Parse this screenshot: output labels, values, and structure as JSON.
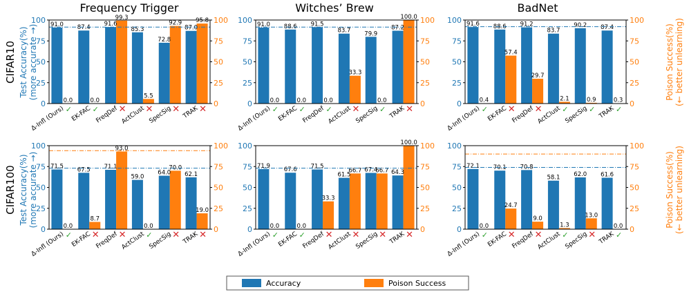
{
  "chart_data": {
    "type": "bar",
    "colors": {
      "accuracy": "#1f77b4",
      "poison": "#ff7f0e",
      "check": "#2ca02c",
      "cross": "#d62728"
    },
    "legend": {
      "accuracy_label": "Accuracy",
      "poison_label": "Poison Success",
      "position": "bottom-center"
    },
    "column_titles": [
      "Frequency Trigger",
      "Witches’ Brew",
      "BadNet"
    ],
    "row_labels": [
      "CIFAR10",
      "CIFAR100"
    ],
    "left_axis_label": [
      "Test Accuracy(%)",
      "(more accurate →)"
    ],
    "right_axis_label": [
      "Poison Success(%)",
      "(← better unlearning)"
    ],
    "ylim": [
      0,
      100
    ],
    "yticks": [
      "0",
      "25",
      "50",
      "75",
      "100"
    ],
    "categories": [
      "Δ-Infl (Ours)",
      "EK-FAC",
      "FreqDef",
      "ActClust",
      "SpecSig",
      "TRAK"
    ],
    "panels": [
      {
        "row": 0,
        "col": 0,
        "accuracy": [
          91.0,
          87.4,
          91.6,
          85.3,
          72.8,
          87.0
        ],
        "accuracy_labels": [
          "91.0",
          "87.4",
          "91.6",
          "85.3",
          "72.8",
          "87.0"
        ],
        "poison": [
          0.0,
          0.0,
          99.3,
          5.5,
          92.9,
          95.8
        ],
        "poison_labels": [
          "0.0",
          "0.0",
          "99.3",
          "5.5",
          "92.9",
          "95.8"
        ],
        "marks": [
          "check",
          "check",
          "cross",
          "cross",
          "cross",
          "cross"
        ],
        "ref_accuracy": 91.5,
        "ref_poison": 100
      },
      {
        "row": 0,
        "col": 1,
        "accuracy": [
          91.0,
          88.6,
          91.5,
          83.7,
          79.9,
          87.2
        ],
        "accuracy_labels": [
          "91.0",
          "88.6",
          "91.5",
          "83.7",
          "79.9",
          "87.2"
        ],
        "poison": [
          0.0,
          0.0,
          0.0,
          33.3,
          0.0,
          100.0
        ],
        "poison_labels": [
          "0.0",
          "0.0",
          "0.0",
          "33.3",
          "0.0",
          "100.0"
        ],
        "marks": [
          "check",
          "check",
          "check",
          "cross",
          "check",
          "cross"
        ],
        "ref_accuracy": 91.5,
        "ref_poison": 100
      },
      {
        "row": 0,
        "col": 2,
        "accuracy": [
          91.6,
          88.6,
          91.2,
          83.7,
          90.2,
          87.4
        ],
        "accuracy_labels": [
          "91.6",
          "88.6",
          "91.2",
          "83.7",
          "90.2",
          "87.4"
        ],
        "poison": [
          0.4,
          57.4,
          29.7,
          2.1,
          0.9,
          0.3
        ],
        "poison_labels": [
          "0.4",
          "57.4",
          "29.7",
          "2.1",
          "0.9",
          "0.3"
        ],
        "marks": [
          "check",
          "cross",
          "cross",
          "check",
          "check",
          "check"
        ],
        "ref_accuracy": 92,
        "ref_poison": 100
      },
      {
        "row": 1,
        "col": 0,
        "accuracy": [
          71.5,
          67.5,
          71.1,
          59.0,
          64.0,
          62.1
        ],
        "accuracy_labels": [
          "71.5",
          "67.5",
          "71.1",
          "59.0",
          "64.0",
          "62.1"
        ],
        "poison": [
          0.0,
          8.7,
          93.0,
          0.0,
          70.0,
          19.0
        ],
        "poison_labels": [
          "0.0",
          "8.7",
          "93.0",
          "0.0",
          "70.0",
          "19.0"
        ],
        "marks": [
          "check",
          "cross",
          "cross",
          "check",
          "cross",
          "cross"
        ],
        "ref_accuracy": 73,
        "ref_poison": 94
      },
      {
        "row": 1,
        "col": 1,
        "accuracy": [
          71.9,
          67.6,
          71.5,
          61.5,
          67.4,
          64.3
        ],
        "accuracy_labels": [
          "71.9",
          "67.6",
          "71.5",
          "61.5",
          "67.4",
          "64.3"
        ],
        "poison": [
          0.0,
          0.0,
          33.3,
          66.7,
          66.7,
          100.0
        ],
        "poison_labels": [
          "0.0",
          "0.0",
          "33.3",
          "66.7",
          "66.7",
          "100.0"
        ],
        "marks": [
          "check",
          "check",
          "cross",
          "cross",
          "cross",
          "cross"
        ],
        "ref_accuracy": 73,
        "ref_poison": 100
      },
      {
        "row": 1,
        "col": 2,
        "accuracy": [
          72.1,
          70.1,
          70.8,
          58.1,
          62.0,
          61.6
        ],
        "accuracy_labels": [
          "72.1",
          "70.1",
          "70.8",
          "58.1",
          "62.0",
          "61.6"
        ],
        "poison": [
          0.0,
          24.7,
          9.0,
          1.3,
          13.0,
          0.0
        ],
        "poison_labels": [
          "0.0",
          "24.7",
          "9.0",
          "1.3",
          "13.0",
          "0.0"
        ],
        "marks": [
          "check",
          "cross",
          "cross",
          "check",
          "cross",
          "check"
        ],
        "ref_accuracy": 74,
        "ref_poison": 90
      }
    ]
  }
}
